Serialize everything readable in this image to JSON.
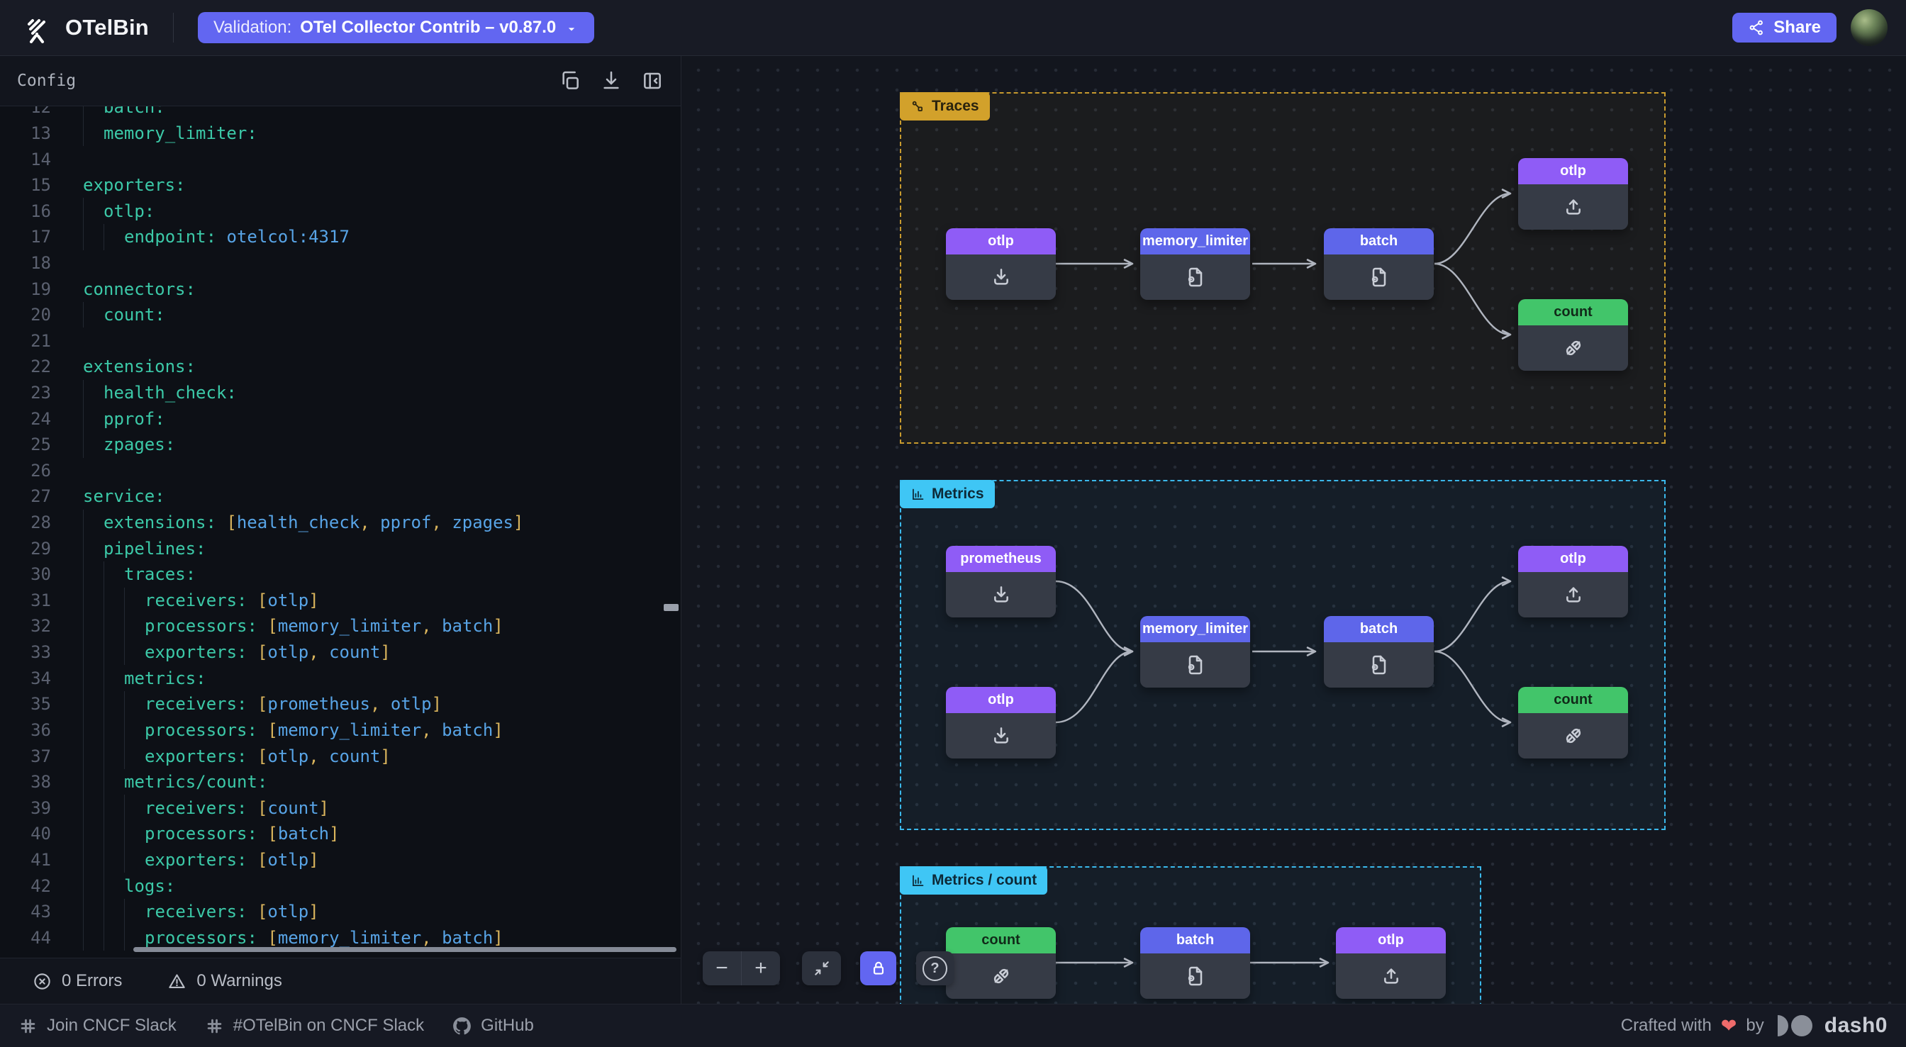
{
  "header": {
    "app_name": "OTelBin",
    "validation_label": "Validation:",
    "validation_value": "OTel Collector Contrib – v0.87.0",
    "share_label": "Share"
  },
  "config_panel": {
    "title": "Config",
    "status": {
      "errors": "0 Errors",
      "warnings": "0 Warnings"
    },
    "editor": {
      "lines": [
        {
          "n": "12",
          "indent": 1,
          "tokens": [
            [
              "k",
              "batch:"
            ]
          ]
        },
        {
          "n": "13",
          "indent": 1,
          "tokens": [
            [
              "k",
              "memory_limiter:"
            ]
          ]
        },
        {
          "n": "14",
          "indent": 0,
          "tokens": []
        },
        {
          "n": "15",
          "indent": 0,
          "tokens": [
            [
              "k",
              "exporters:"
            ]
          ]
        },
        {
          "n": "16",
          "indent": 1,
          "tokens": [
            [
              "k",
              "otlp:"
            ]
          ]
        },
        {
          "n": "17",
          "indent": 2,
          "tokens": [
            [
              "k",
              "endpoint:"
            ],
            [
              "w",
              " "
            ],
            [
              "v",
              "otelcol:4317"
            ]
          ]
        },
        {
          "n": "18",
          "indent": 0,
          "tokens": []
        },
        {
          "n": "19",
          "indent": 0,
          "tokens": [
            [
              "k",
              "connectors:"
            ]
          ]
        },
        {
          "n": "20",
          "indent": 1,
          "tokens": [
            [
              "k",
              "count:"
            ]
          ]
        },
        {
          "n": "21",
          "indent": 0,
          "tokens": []
        },
        {
          "n": "22",
          "indent": 0,
          "tokens": [
            [
              "k",
              "extensions:"
            ]
          ]
        },
        {
          "n": "23",
          "indent": 1,
          "tokens": [
            [
              "k",
              "health_check:"
            ]
          ]
        },
        {
          "n": "24",
          "indent": 1,
          "tokens": [
            [
              "k",
              "pprof:"
            ]
          ]
        },
        {
          "n": "25",
          "indent": 1,
          "tokens": [
            [
              "k",
              "zpages:"
            ]
          ]
        },
        {
          "n": "26",
          "indent": 0,
          "tokens": []
        },
        {
          "n": "27",
          "indent": 0,
          "tokens": [
            [
              "k",
              "service:"
            ]
          ]
        },
        {
          "n": "28",
          "indent": 1,
          "tokens": [
            [
              "k",
              "extensions:"
            ],
            [
              "w",
              " "
            ],
            [
              "p",
              "["
            ],
            [
              "v",
              "health_check"
            ],
            [
              "p",
              ", "
            ],
            [
              "v",
              "pprof"
            ],
            [
              "p",
              ", "
            ],
            [
              "v",
              "zpages"
            ],
            [
              "p",
              "]"
            ]
          ]
        },
        {
          "n": "29",
          "indent": 1,
          "tokens": [
            [
              "k",
              "pipelines:"
            ]
          ]
        },
        {
          "n": "30",
          "indent": 2,
          "tokens": [
            [
              "k",
              "traces:"
            ]
          ]
        },
        {
          "n": "31",
          "indent": 3,
          "tokens": [
            [
              "k",
              "receivers:"
            ],
            [
              "w",
              " "
            ],
            [
              "p",
              "["
            ],
            [
              "v",
              "otlp"
            ],
            [
              "p",
              "]"
            ]
          ]
        },
        {
          "n": "32",
          "indent": 3,
          "tokens": [
            [
              "k",
              "processors:"
            ],
            [
              "w",
              " "
            ],
            [
              "p",
              "["
            ],
            [
              "v",
              "memory_limiter"
            ],
            [
              "p",
              ", "
            ],
            [
              "v",
              "batch"
            ],
            [
              "p",
              "]"
            ]
          ]
        },
        {
          "n": "33",
          "indent": 3,
          "tokens": [
            [
              "k",
              "exporters:"
            ],
            [
              "w",
              " "
            ],
            [
              "p",
              "["
            ],
            [
              "v",
              "otlp"
            ],
            [
              "p",
              ", "
            ],
            [
              "v",
              "count"
            ],
            [
              "p",
              "]"
            ]
          ]
        },
        {
          "n": "34",
          "indent": 2,
          "tokens": [
            [
              "k",
              "metrics:"
            ]
          ]
        },
        {
          "n": "35",
          "indent": 3,
          "tokens": [
            [
              "k",
              "receivers:"
            ],
            [
              "w",
              " "
            ],
            [
              "p",
              "["
            ],
            [
              "v",
              "prometheus"
            ],
            [
              "p",
              ", "
            ],
            [
              "v",
              "otlp"
            ],
            [
              "p",
              "]"
            ]
          ]
        },
        {
          "n": "36",
          "indent": 3,
          "tokens": [
            [
              "k",
              "processors:"
            ],
            [
              "w",
              " "
            ],
            [
              "p",
              "["
            ],
            [
              "v",
              "memory_limiter"
            ],
            [
              "p",
              ", "
            ],
            [
              "v",
              "batch"
            ],
            [
              "p",
              "]"
            ]
          ]
        },
        {
          "n": "37",
          "indent": 3,
          "tokens": [
            [
              "k",
              "exporters:"
            ],
            [
              "w",
              " "
            ],
            [
              "p",
              "["
            ],
            [
              "v",
              "otlp"
            ],
            [
              "p",
              ", "
            ],
            [
              "v",
              "count"
            ],
            [
              "p",
              "]"
            ]
          ]
        },
        {
          "n": "38",
          "indent": 2,
          "tokens": [
            [
              "k",
              "metrics/count:"
            ]
          ]
        },
        {
          "n": "39",
          "indent": 3,
          "tokens": [
            [
              "k",
              "receivers:"
            ],
            [
              "w",
              " "
            ],
            [
              "p",
              "["
            ],
            [
              "v",
              "count"
            ],
            [
              "p",
              "]"
            ]
          ]
        },
        {
          "n": "40",
          "indent": 3,
          "tokens": [
            [
              "k",
              "processors:"
            ],
            [
              "w",
              " "
            ],
            [
              "p",
              "["
            ],
            [
              "v",
              "batch"
            ],
            [
              "p",
              "]"
            ]
          ]
        },
        {
          "n": "41",
          "indent": 3,
          "tokens": [
            [
              "k",
              "exporters:"
            ],
            [
              "w",
              " "
            ],
            [
              "p",
              "["
            ],
            [
              "v",
              "otlp"
            ],
            [
              "p",
              "]"
            ]
          ]
        },
        {
          "n": "42",
          "indent": 2,
          "tokens": [
            [
              "k",
              "logs:"
            ]
          ]
        },
        {
          "n": "43",
          "indent": 3,
          "tokens": [
            [
              "k",
              "receivers:"
            ],
            [
              "w",
              " "
            ],
            [
              "p",
              "["
            ],
            [
              "v",
              "otlp"
            ],
            [
              "p",
              "]"
            ]
          ]
        },
        {
          "n": "44",
          "indent": 3,
          "tokens": [
            [
              "k",
              "processors:"
            ],
            [
              "w",
              " "
            ],
            [
              "p",
              "["
            ],
            [
              "v",
              "memory_limiter"
            ],
            [
              "p",
              ", "
            ],
            [
              "v",
              "batch"
            ],
            [
              "p",
              "]"
            ]
          ]
        }
      ]
    }
  },
  "canvas": {
    "groups": [
      {
        "label": "Traces",
        "nodes": [
          {
            "label": "otlp",
            "kind": "receiver"
          },
          {
            "label": "memory_limiter",
            "kind": "processor"
          },
          {
            "label": "batch",
            "kind": "processor"
          },
          {
            "label": "otlp",
            "kind": "exporter"
          },
          {
            "label": "count",
            "kind": "connector"
          }
        ],
        "edges": [
          "otlp→memory_limiter",
          "memory_limiter→batch",
          "batch→otlp",
          "batch→count"
        ]
      },
      {
        "label": "Metrics",
        "nodes": [
          {
            "label": "prometheus",
            "kind": "receiver"
          },
          {
            "label": "otlp",
            "kind": "receiver"
          },
          {
            "label": "memory_limiter",
            "kind": "processor"
          },
          {
            "label": "batch",
            "kind": "processor"
          },
          {
            "label": "otlp",
            "kind": "exporter"
          },
          {
            "label": "count",
            "kind": "connector"
          }
        ],
        "edges": [
          "prometheus→memory_limiter",
          "otlp→memory_limiter",
          "memory_limiter→batch",
          "batch→otlp",
          "batch→count"
        ]
      },
      {
        "label": "Metrics / count",
        "nodes": [
          {
            "label": "count",
            "kind": "connector"
          },
          {
            "label": "batch",
            "kind": "processor"
          },
          {
            "label": "otlp",
            "kind": "exporter"
          }
        ],
        "edges": [
          "count→batch",
          "batch→otlp"
        ]
      }
    ],
    "controls": {
      "zoom_out": "−",
      "zoom_in": "+",
      "help": "?"
    }
  },
  "footer": {
    "links": [
      {
        "label": "Join CNCF Slack"
      },
      {
        "label": "#OTelBin on CNCF Slack"
      },
      {
        "label": "GitHub"
      }
    ],
    "credit_prefix": "Crafted with",
    "credit_heart": "❤",
    "credit_suffix": "by",
    "brand": "dash0"
  },
  "colors": {
    "accent_indigo": "#6266f1",
    "receiver_header": "#8f5cf6",
    "processor_header": "#5e66ea",
    "connector_header": "#42c56a",
    "traces_group": "#d2a12b",
    "metrics_group": "#3fc6f5",
    "code_key": "#3cc9a8",
    "code_value": "#58a4e6",
    "code_punct": "#d9b45c",
    "heart": "#ee6b6b"
  }
}
